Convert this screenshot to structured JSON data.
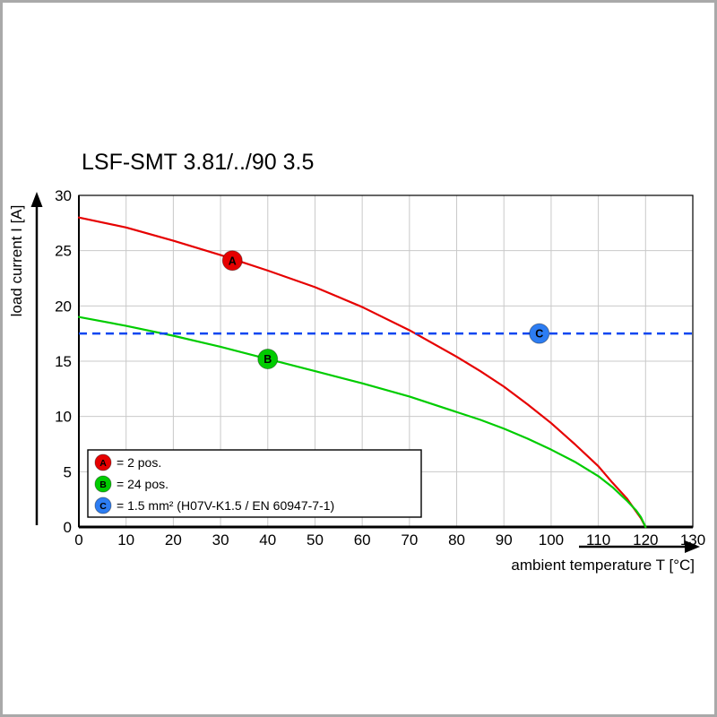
{
  "chart_data": {
    "type": "line",
    "title": "LSF-SMT 3.81/../90 3.5",
    "xlabel": "ambient temperature T [°C]",
    "ylabel": "load current I [A]",
    "xlim": [
      0,
      130
    ],
    "ylim": [
      0,
      30
    ],
    "xticks": [
      0,
      10,
      20,
      30,
      40,
      50,
      60,
      70,
      80,
      90,
      100,
      110,
      120,
      130
    ],
    "yticks": [
      0,
      5,
      10,
      15,
      20,
      25,
      30
    ],
    "grid": true,
    "grid_color": "#c9c9c9",
    "legend_position": "lower-left",
    "series": [
      {
        "name": "A",
        "label": "= 2 pos.",
        "color": "#e60000",
        "style": "solid",
        "x": [
          0,
          10,
          20,
          30,
          40,
          50,
          60,
          70,
          80,
          85,
          90,
          95,
          100,
          105,
          110,
          113,
          116,
          118,
          119,
          120
        ],
        "y": [
          28,
          27.1,
          25.9,
          24.6,
          23.2,
          21.7,
          19.9,
          17.8,
          15.4,
          14.1,
          12.7,
          11.1,
          9.4,
          7.5,
          5.5,
          4.0,
          2.6,
          1.4,
          0.8,
          0
        ],
        "marker": {
          "x": 32.5,
          "y": 24.1,
          "letter": "A"
        }
      },
      {
        "name": "B",
        "label": "= 24 pos.",
        "color": "#00cc00",
        "style": "solid",
        "x": [
          0,
          10,
          20,
          30,
          40,
          50,
          60,
          70,
          80,
          85,
          90,
          95,
          100,
          105,
          110,
          113,
          116,
          118,
          119,
          120
        ],
        "y": [
          19,
          18.2,
          17.3,
          16.3,
          15.2,
          14.1,
          13.0,
          11.8,
          10.4,
          9.7,
          8.9,
          8.0,
          7.0,
          5.9,
          4.6,
          3.6,
          2.4,
          1.5,
          0.9,
          0
        ],
        "marker": {
          "x": 40,
          "y": 15.2,
          "letter": "B"
        }
      },
      {
        "name": "C",
        "label": "= 1.5 mm² (H07V-K1.5 / EN 60947-7-1)",
        "color": "#0a46f0",
        "badge_color": "#2d7df2",
        "style": "dashed",
        "y_const": 17.5,
        "marker": {
          "x": 97.5,
          "y": 17.5,
          "letter": "C"
        }
      }
    ]
  }
}
